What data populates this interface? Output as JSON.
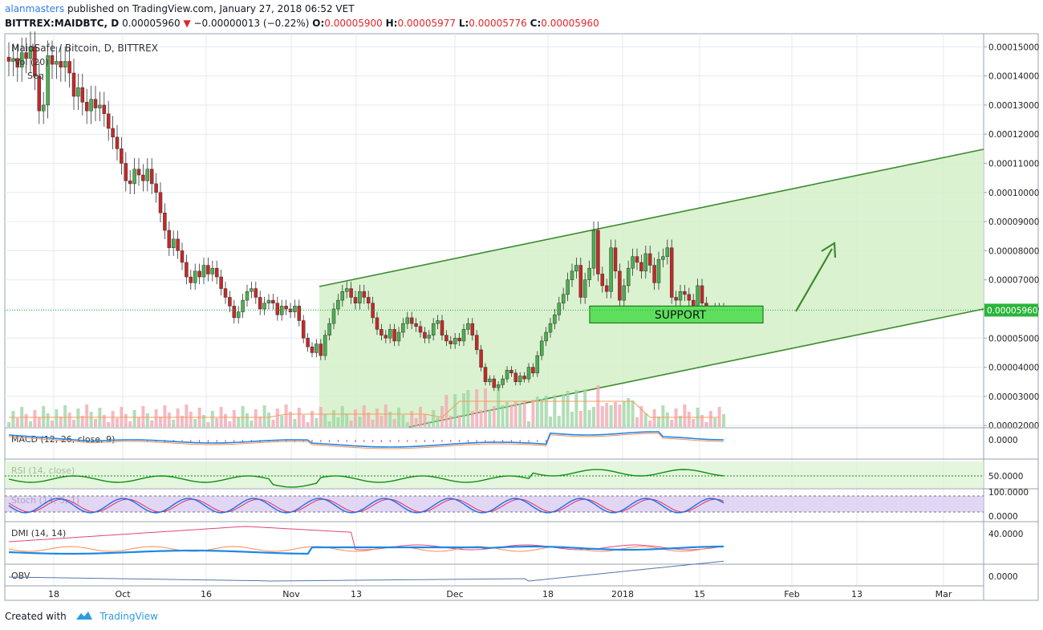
{
  "header": {
    "author": "alanmasters",
    "published_text": "published on TradingView.com, January 27, 2018 06:52 VET",
    "symbol": "BITTREX:MAIDBTC, D",
    "last": "0.00005960",
    "change": "−0.00000013 (−0.22%)",
    "o_label": "O:",
    "o": "0.00005900",
    "h_label": "H:",
    "h": "0.00005977",
    "l_label": "L:",
    "l": "0.00005776",
    "c_label": "C:",
    "c": "0.00005960"
  },
  "footer": {
    "created_with": "Created with",
    "brand": "TradingView"
  },
  "colors": {
    "up": "#4caf50",
    "down": "#c62828",
    "channel": "#3b8a2e",
    "channel_fill": "#d3f0c8",
    "support": "#5ee05e",
    "macd": "#1e88e5",
    "signal": "#ff8a50",
    "rsi": "#0f8f10",
    "stoch_k": "#1e6fe5",
    "stoch_d": "#e03060",
    "price_tag": "#2ab53a"
  },
  "chart_data": {
    "type": "candlestick",
    "title": "MaidSafe / Bitcoin, D, BITTREX",
    "overlay_labels": [
      "Vol (20)",
      "Seq"
    ],
    "x_ticks": [
      "18",
      "Oct",
      "16",
      "Nov",
      "13",
      "Dec",
      "18",
      "2018",
      "15",
      "Feb",
      "13",
      "Mar"
    ],
    "y_ticks": [
      "0.00015000",
      "0.00014000",
      "0.00013000",
      "0.00012000",
      "0.00011000",
      "0.00010000",
      "0.00009000",
      "0.00008000",
      "0.00007000",
      "0.00006000",
      "0.00005000",
      "0.00004000",
      "0.00003000",
      "0.00002000"
    ],
    "ylim": [
      1.95e-05,
      0.0001545
    ],
    "last_price": "0.00005960",
    "support_label": "SUPPORT",
    "support_zone": [
      5.52e-05,
      6.1e-05
    ],
    "close_series": [
      0.000145,
      0.000146,
      0.000143,
      0.000148,
      0.000146,
      0.00015,
      0.00014,
      0.000128,
      0.00013,
      0.000147,
      0.000144,
      0.000145,
      0.000143,
      0.000145,
      0.000141,
      0.000133,
      0.000136,
      0.000131,
      0.000128,
      0.000132,
      0.000129,
      0.00013,
      0.000127,
      0.000122,
      0.000119,
      0.000115,
      0.00011,
      0.000104,
      0.000103,
      0.000108,
      0.000106,
      0.000104,
      0.000108,
      0.000103,
      0.0001,
      9.3e-05,
      8.7e-05,
      8.1e-05,
      8.4e-05,
      8e-05,
      7.6e-05,
      7.1e-05,
      6.9e-05,
      7.3e-05,
      7.1e-05,
      7.5e-05,
      7.2e-05,
      7.4e-05,
      7.1e-05,
      6.7e-05,
      6.4e-05,
      6.1e-05,
      5.7e-05,
      5.9e-05,
      6.3e-05,
      6.6e-05,
      6.7e-05,
      6.4e-05,
      6e-05,
      6.2e-05,
      6.3e-05,
      6.2e-05,
      5.8e-05,
      6.1e-05,
      6e-05,
      5.9e-05,
      6.1e-05,
      5.6e-05,
      5e-05,
      4.7e-05,
      4.5e-05,
      4.8e-05,
      4.4e-05,
      5.1e-05,
      5.5e-05,
      6e-05,
      6.3e-05,
      6.6e-05,
      6.7e-05,
      6.4e-05,
      6.2e-05,
      6.6e-05,
      6.4e-05,
      6.2e-05,
      5.7e-05,
      5.3e-05,
      5.1e-05,
      5e-05,
      5.3e-05,
      4.9e-05,
      5.2e-05,
      5.5e-05,
      5.7e-05,
      5.5e-05,
      5.4e-05,
      5.2e-05,
      5e-05,
      5.1e-05,
      5.5e-05,
      5.6e-05,
      5.1e-05,
      4.9e-05,
      4.8e-05,
      5e-05,
      4.9e-05,
      5.3e-05,
      5.5e-05,
      5.1e-05,
      4.6e-05,
      4e-05,
      3.5e-05,
      3.6e-05,
      3.3e-05,
      3.4e-05,
      3.6e-05,
      3.9e-05,
      3.8e-05,
      3.5e-05,
      3.7e-05,
      3.6e-05,
      4e-05,
      3.8e-05,
      4.4e-05,
      4.9e-05,
      5.2e-05,
      5.5e-05,
      5.8e-05,
      6.2e-05,
      6.5e-05,
      7e-05,
      7.3e-05,
      7.5e-05,
      6.4e-05,
      7e-05,
      7.4e-05,
      8.7e-05,
      7.2e-05,
      6.8e-05,
      6.6e-05,
      8.1e-05,
      7.3e-05,
      6.3e-05,
      6.8e-05,
      7.4e-05,
      7.8e-05,
      7.6e-05,
      7.3e-05,
      7.9e-05,
      7.5e-05,
      6.9e-05,
      7.7e-05,
      7.8e-05,
      8.1e-05,
      6.4e-05,
      6.3e-05,
      6.6e-05,
      6.5e-05,
      6.3e-05,
      6.1e-05,
      6.8e-05,
      6.2e-05,
      5.9e-05,
      5.8e-05,
      6e-05,
      5.9e-05,
      6e-05
    ],
    "panels": [
      {
        "label": "MACD (12, 26, close, 9)",
        "ticks": [
          "0.0000"
        ]
      },
      {
        "label": "RSI (14, close)",
        "ticks": [
          "50.0000"
        ]
      },
      {
        "label": "Stoch (14, 3, 1)",
        "ticks": [
          "100.0000",
          "0.0000"
        ]
      },
      {
        "label": "DMI (14, 14)",
        "ticks": [
          "40.0000"
        ]
      },
      {
        "label": "OBV",
        "ticks": [
          "0.0000"
        ]
      }
    ],
    "grid": true
  }
}
